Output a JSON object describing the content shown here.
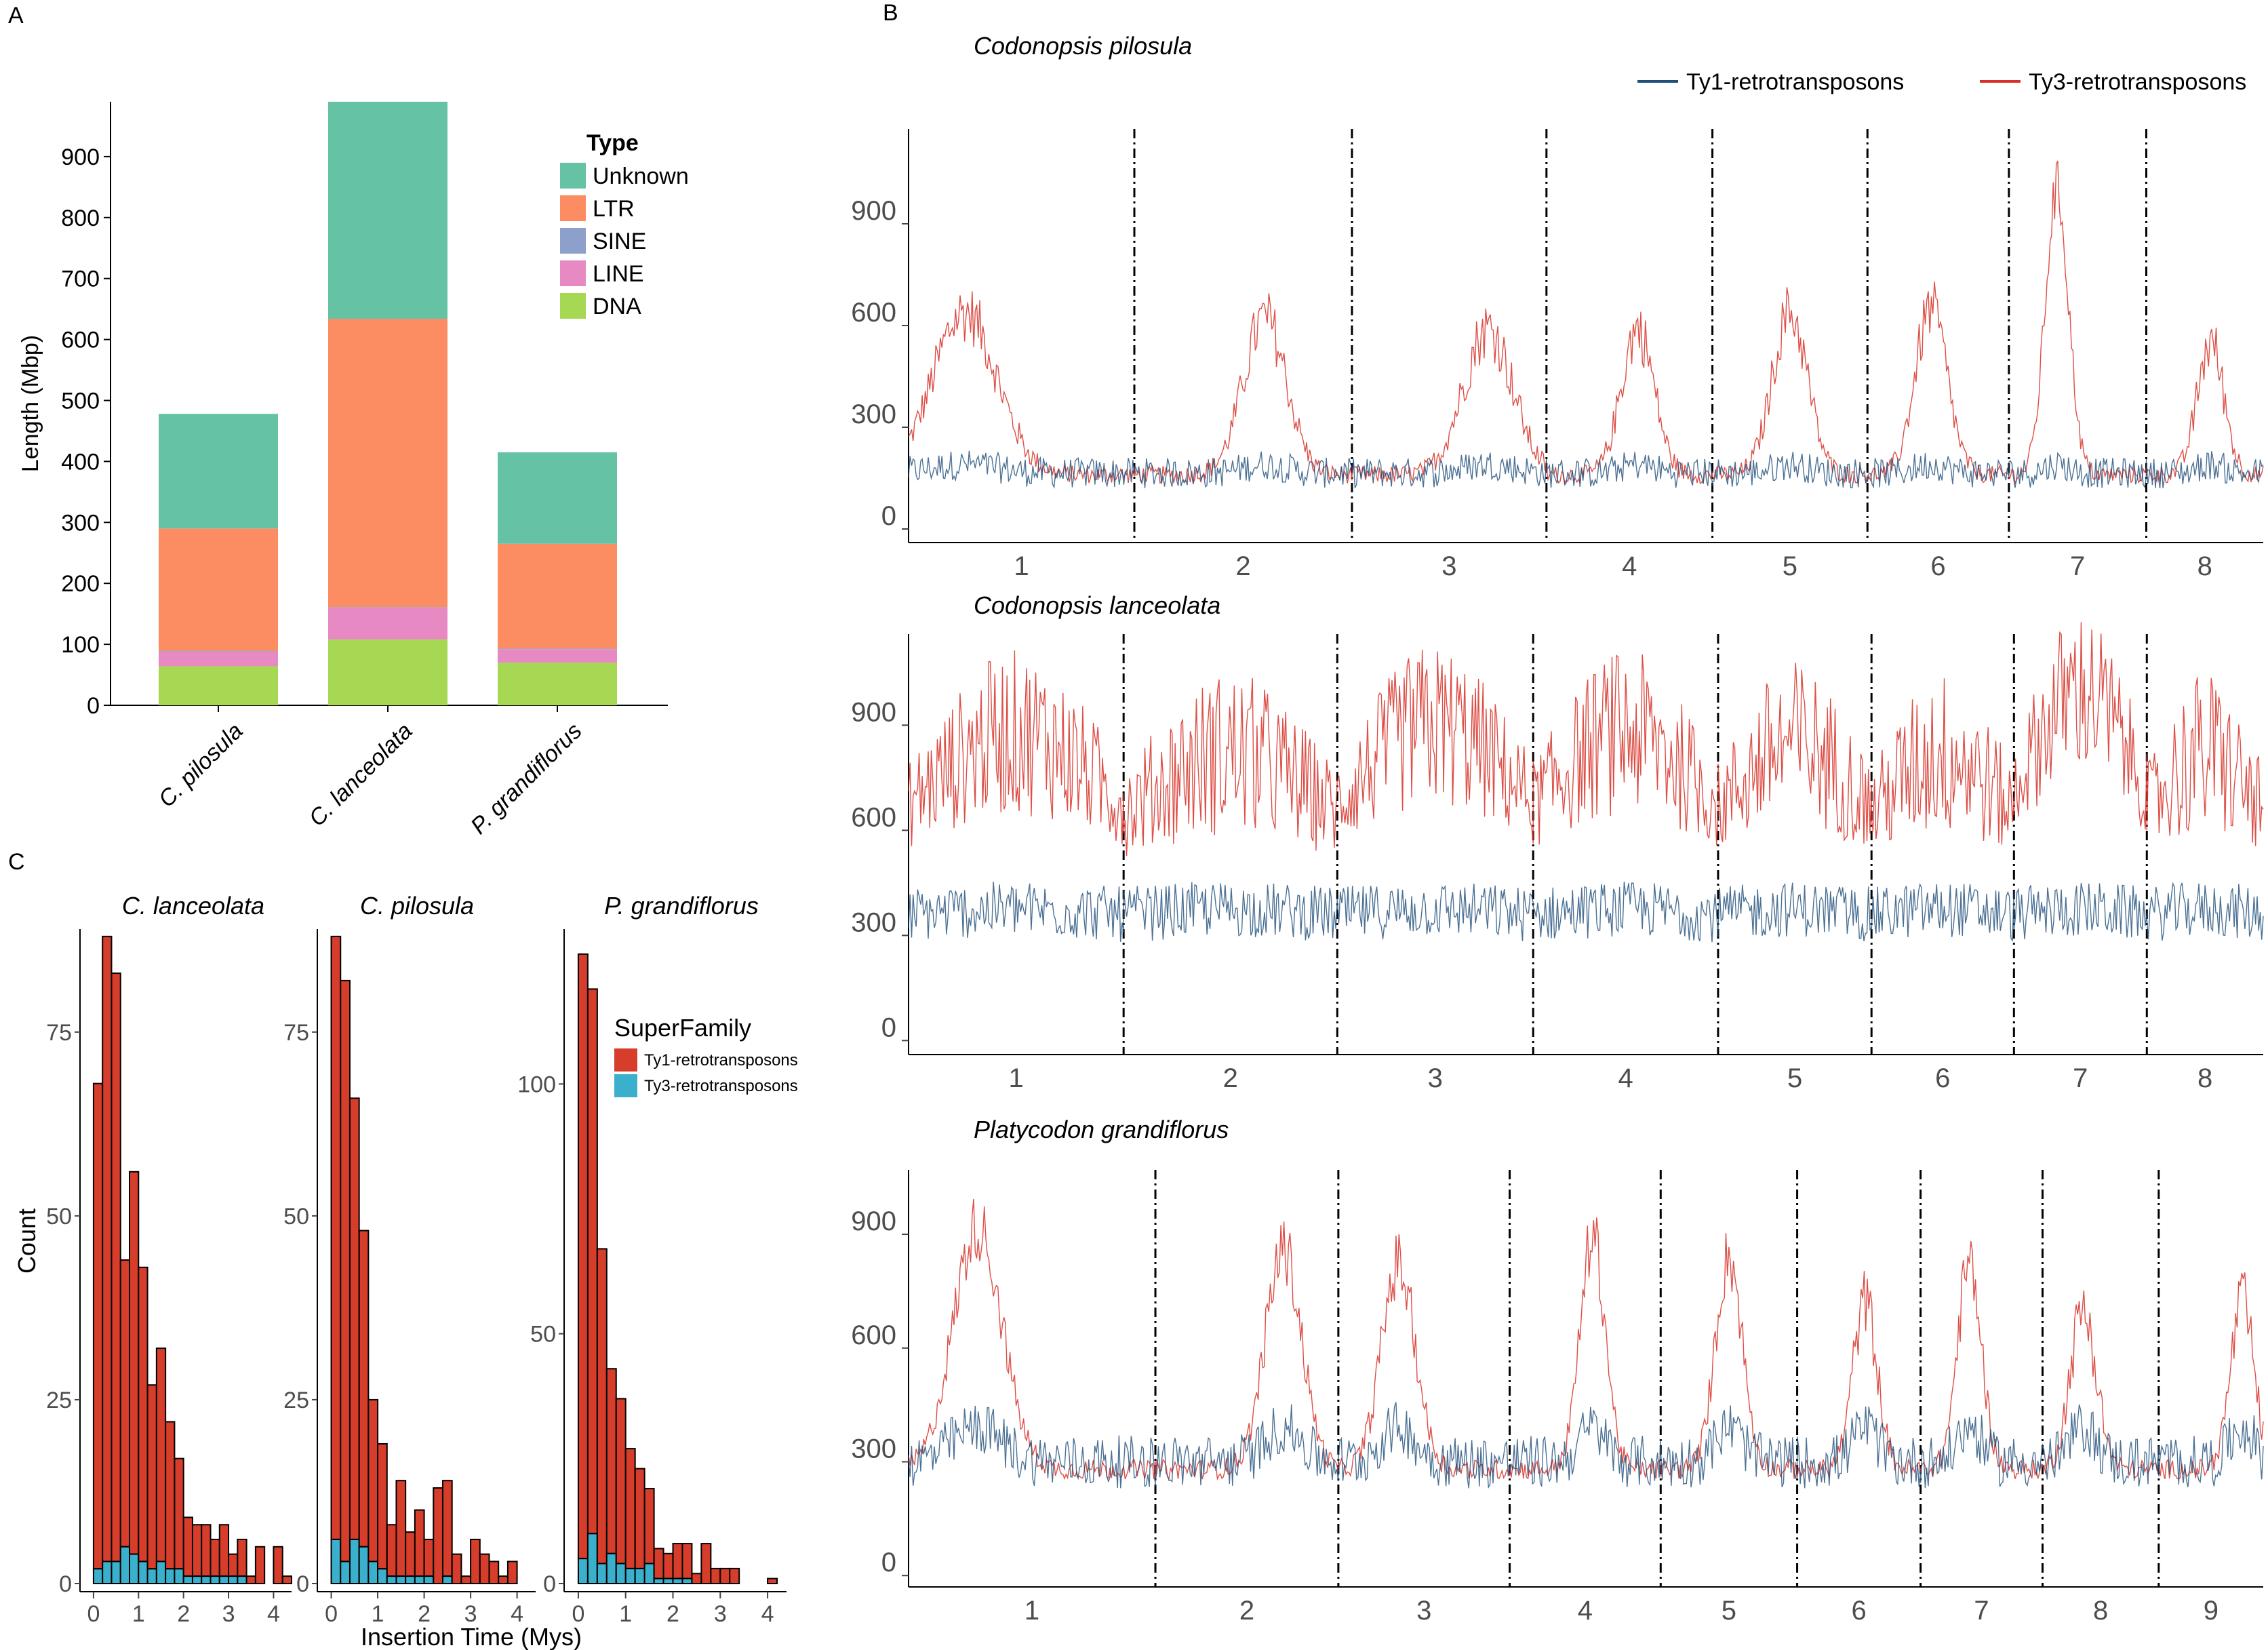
{
  "panels": {
    "a": "A",
    "b": "B",
    "c": "C"
  },
  "chart_data": [
    {
      "id": "A",
      "type": "bar",
      "stacked": true,
      "title": "",
      "xlabel": "",
      "ylabel": "Length (Mbp)",
      "ylim": [
        0,
        990
      ],
      "yticks": [
        0,
        100,
        200,
        300,
        400,
        500,
        600,
        700,
        800,
        900
      ],
      "categories": [
        "C. pilosula",
        "C. lanceolata",
        "P. grandiflorus"
      ],
      "legend_title": "Type",
      "legend_order": [
        "Unknown",
        "LTR",
        "SINE",
        "LINE",
        "DNA"
      ],
      "series": [
        {
          "name": "DNA",
          "color": "#A6D854",
          "values": [
            64,
            108,
            70
          ]
        },
        {
          "name": "LINE",
          "color": "#E78AC3",
          "values": [
            24,
            52,
            22
          ]
        },
        {
          "name": "SINE",
          "color": "#8DA0CB",
          "values": [
            1,
            1,
            1
          ]
        },
        {
          "name": "LTR",
          "color": "#FC8D62",
          "values": [
            201,
            473,
            172
          ]
        },
        {
          "name": "Unknown",
          "color": "#66C2A5",
          "values": [
            188,
            356,
            150
          ]
        }
      ]
    },
    {
      "id": "B",
      "type": "line",
      "legend": [
        {
          "name": "Ty1-retrotransposons",
          "color": "#1F4E79"
        },
        {
          "name": "Ty3-retrotransposons",
          "color": "#D73027"
        }
      ],
      "subplots": [
        {
          "title": "Codonopsis pilosula",
          "ylim": [
            -40,
            1180
          ],
          "yticks": [
            0,
            300,
            600,
            900
          ],
          "chromosomes": [
            "1",
            "2",
            "3",
            "4",
            "5",
            "6",
            "7",
            "8"
          ],
          "chrom_sizes": [
            1.66,
            1.6,
            1.43,
            1.22,
            1.14,
            1.04,
            1.01,
            0.86
          ],
          "ty1_baseline": 165,
          "ty1_noise": 45,
          "ty3_baseline": 160,
          "ty3_peaks": [
            640,
            620,
            590,
            590,
            640,
            650,
            1000,
            550
          ],
          "peak_pos": [
            0.25,
            0.6,
            0.7,
            0.55,
            0.5,
            0.45,
            0.35,
            0.55
          ],
          "peak_width": [
            0.2,
            0.14,
            0.18,
            0.14,
            0.16,
            0.16,
            0.12,
            0.16
          ]
        },
        {
          "title": "Codonopsis lanceolata",
          "ylim": [
            -40,
            1160
          ],
          "yticks": [
            0,
            300,
            600,
            900
          ],
          "chromosomes": [
            "1",
            "2",
            "3",
            "4",
            "5",
            "6",
            "7",
            "8"
          ],
          "chrom_sizes": [
            1.57,
            1.56,
            1.43,
            1.35,
            1.12,
            1.04,
            0.97,
            0.85
          ],
          "ty1_baseline": 350,
          "ty1_noise": 80,
          "ty3_baseline": 560,
          "ty3_peaks": [
            880,
            820,
            900,
            880,
            850,
            820,
            1000,
            820
          ],
          "peak_pos": [
            0.5,
            0.5,
            0.5,
            0.5,
            0.5,
            0.5,
            0.5,
            0.5
          ],
          "peak_width": [
            0.5,
            0.5,
            0.5,
            0.5,
            0.5,
            0.5,
            0.5,
            0.5
          ]
        },
        {
          "title": "Platycodon grandiflorus",
          "ylim": [
            -30,
            1070
          ],
          "yticks": [
            0,
            300,
            600,
            900
          ],
          "chromosomes": [
            "1",
            "2",
            "3",
            "4",
            "5",
            "6",
            "7",
            "8",
            "9"
          ],
          "chrom_sizes": [
            1.7,
            1.26,
            1.18,
            1.04,
            0.94,
            0.85,
            0.84,
            0.8,
            0.72
          ],
          "ty1_baseline": 300,
          "ty1_noise": 70,
          "ty3_baseline": 280,
          "ty3_peaks": [
            920,
            860,
            820,
            890,
            840,
            720,
            820,
            700,
            720
          ],
          "peak_pos": [
            0.28,
            0.7,
            0.35,
            0.55,
            0.5,
            0.55,
            0.4,
            0.35,
            0.8
          ],
          "peak_width": [
            0.14,
            0.14,
            0.14,
            0.12,
            0.14,
            0.14,
            0.14,
            0.16,
            0.16
          ]
        }
      ]
    },
    {
      "id": "C",
      "type": "histogram",
      "stacked": true,
      "xlabel": "Insertion Time (Mys)",
      "ylabel": "Count",
      "xlim": [
        -0.3,
        4.4
      ],
      "xticks": [
        0,
        1,
        2,
        3,
        4
      ],
      "bin_width": 0.2,
      "legend_title": "SuperFamily",
      "legend": [
        {
          "name": "Ty1-retrotransposons",
          "color": "#D73D2B"
        },
        {
          "name": "Ty3-retrotransposons",
          "color": "#3AB0CD"
        }
      ],
      "facets": [
        {
          "title": "C. lanceolata",
          "ymax": 89,
          "yticks": [
            0,
            25,
            50,
            75
          ],
          "bins": [
            0,
            0.2,
            0.4,
            0.6,
            0.8,
            1.0,
            1.2,
            1.4,
            1.6,
            1.8,
            2.0,
            2.2,
            2.4,
            2.6,
            2.8,
            3.0,
            3.2,
            3.4,
            3.6,
            3.8,
            4.0,
            4.2
          ],
          "totals": [
            68,
            88,
            83,
            44,
            56,
            43,
            27,
            32,
            22,
            17,
            9,
            8,
            8,
            6,
            8,
            4,
            6,
            1,
            5,
            0,
            5,
            1
          ],
          "ty3": [
            2,
            3,
            3,
            5,
            4,
            3,
            2,
            3,
            2,
            2,
            1,
            1,
            1,
            1,
            1,
            1,
            1,
            0,
            0,
            0,
            0,
            0
          ]
        },
        {
          "title": "C. pilosula",
          "ymax": 89,
          "yticks": [
            0,
            25,
            50,
            75
          ],
          "bins": [
            0,
            0.2,
            0.4,
            0.6,
            0.8,
            1.0,
            1.2,
            1.4,
            1.6,
            1.8,
            2.0,
            2.2,
            2.4,
            2.6,
            2.8,
            3.0,
            3.2,
            3.4,
            3.6,
            3.8,
            4.0
          ],
          "totals": [
            88,
            82,
            66,
            48,
            25,
            19,
            8,
            14,
            7,
            10,
            6,
            13,
            14,
            4,
            1,
            6,
            4,
            3,
            1,
            3,
            0
          ],
          "ty3": [
            6,
            3,
            6,
            5,
            3,
            2,
            1,
            1,
            1,
            1,
            1,
            0,
            1,
            0,
            0,
            0,
            0,
            0,
            0,
            0,
            0
          ]
        },
        {
          "title": "P. grandiflorus",
          "ymax": 131,
          "yticks": [
            0,
            50,
            100
          ],
          "bins": [
            0,
            0.2,
            0.4,
            0.6,
            0.8,
            1.0,
            1.2,
            1.4,
            1.6,
            1.8,
            2.0,
            2.2,
            2.4,
            2.6,
            2.8,
            3.0,
            3.2,
            3.4,
            3.6,
            3.8,
            4.0
          ],
          "totals": [
            126,
            119,
            67,
            43,
            37,
            27,
            23,
            19,
            7,
            6,
            8,
            8,
            2,
            8,
            3,
            3,
            3,
            0,
            0,
            0,
            1
          ],
          "ty3": [
            5,
            10,
            4,
            6,
            4,
            3,
            3,
            4,
            1,
            1,
            1,
            1,
            0,
            0,
            0,
            0,
            0,
            0,
            0,
            0,
            0
          ]
        }
      ]
    }
  ]
}
